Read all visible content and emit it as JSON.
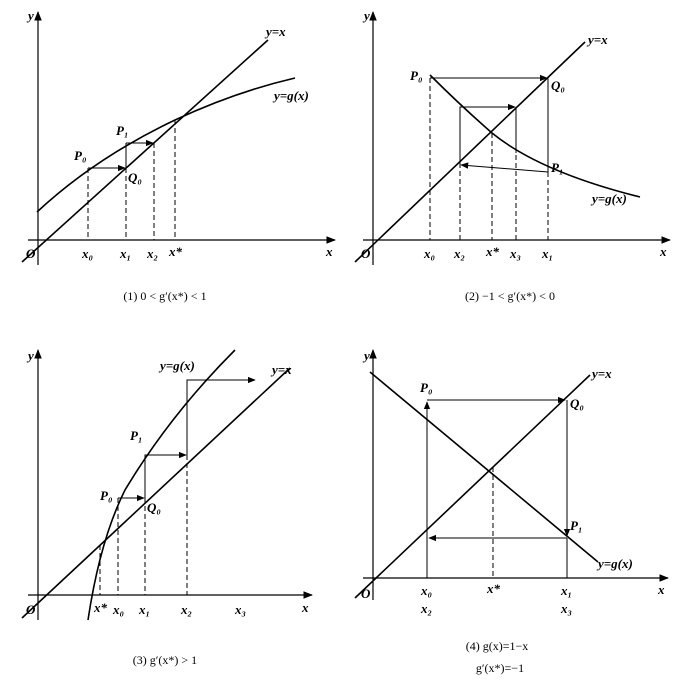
{
  "panels": [
    {
      "caption": "(1) 0 < g′(x*) < 1",
      "axis_y": "y",
      "axis_x": "x",
      "origin": "O",
      "line_label": "y=x",
      "curve_label": "y=g(x)",
      "points": [
        "P₀",
        "Q₀",
        "P₁"
      ],
      "ticks": [
        "x₀",
        "x₁",
        "x₂",
        "x*"
      ]
    },
    {
      "caption": "(2) −1 < g′(x*) < 0",
      "axis_y": "y",
      "axis_x": "x",
      "origin": "O",
      "line_label": "y=x",
      "curve_label": "y=g(x)",
      "points": [
        "P₀",
        "Q₀",
        "P₁"
      ],
      "ticks": [
        "x₀",
        "x₂",
        "x*",
        "x₃",
        "x₁"
      ]
    },
    {
      "caption": "(3) g′(x*) > 1",
      "axis_y": "y",
      "axis_x": "x",
      "origin": "O",
      "line_label": "y=x",
      "curve_label": "y=g(x)",
      "points": [
        "P₀",
        "Q₀",
        "P₁"
      ],
      "ticks": [
        "x*",
        "x₀",
        "x₁",
        "x₂",
        "x₃"
      ]
    },
    {
      "caption": "(4) g(x)=1−x",
      "caption_2": "g′(x*)=−1",
      "axis_y": "y",
      "axis_x": "x",
      "origin": "O",
      "line_label": "y=x",
      "curve_label": "y=g(x)",
      "points": [
        "P₀",
        "Q₀",
        "P₁"
      ],
      "ticks": [
        "x₀",
        "x*",
        "x₁",
        "x₂",
        "x₃"
      ]
    }
  ]
}
